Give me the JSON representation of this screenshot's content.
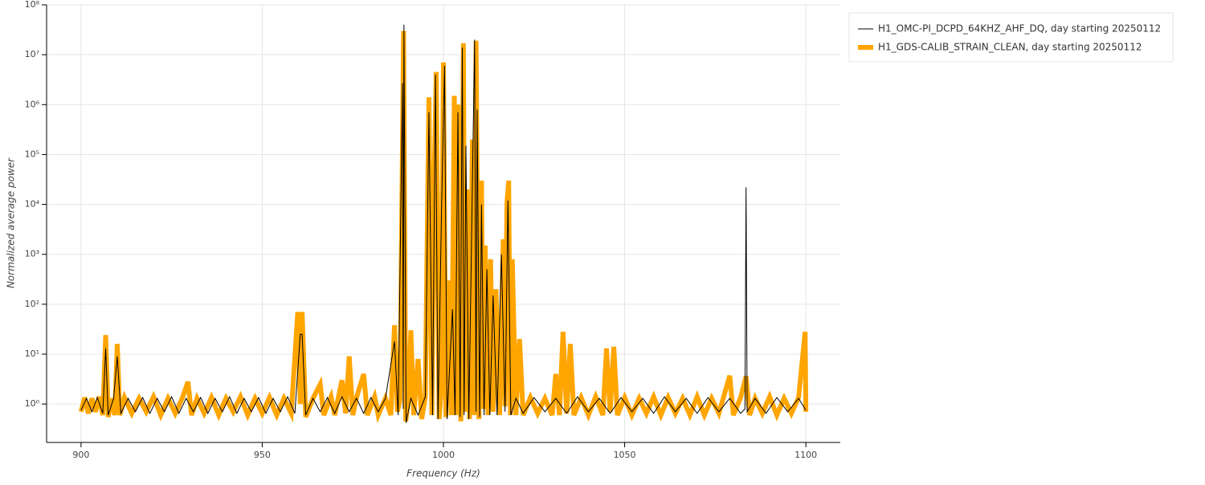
{
  "chart_data": {
    "type": "line",
    "xlabel": "Frequency (Hz)",
    "ylabel": "Normalized average power",
    "yscale": "log",
    "grid": true,
    "legend_position": "right",
    "xlim": [
      890.5,
      1109.5
    ],
    "ylim": [
      0.17,
      100000000
    ],
    "xticks": [
      900,
      950,
      1000,
      1050,
      1100
    ],
    "yticks": [
      {
        "value": 1,
        "label": "10⁰"
      },
      {
        "value": 10,
        "label": "10¹"
      },
      {
        "value": 100,
        "label": "10²"
      },
      {
        "value": 1000,
        "label": "10³"
      },
      {
        "value": 10000,
        "label": "10⁴"
      },
      {
        "value": 100000,
        "label": "10⁵"
      },
      {
        "value": 1000000,
        "label": "10⁶"
      },
      {
        "value": 10000000,
        "label": "10⁷"
      },
      {
        "value": 100000000,
        "label": "10⁸"
      }
    ],
    "series": [
      {
        "name": "H1_OMC-PI_DCPD_64KHZ_AHF_DQ, day starting 20250112",
        "color": "#000000",
        "width": 1,
        "x": [
          900,
          901.5,
          903,
          904.5,
          906,
          906.8,
          907.5,
          909,
          910,
          911,
          913,
          915,
          917,
          919,
          921,
          923,
          925,
          927,
          929,
          931,
          933,
          935,
          937,
          939,
          941,
          943,
          945,
          947,
          949,
          951,
          953,
          955,
          957,
          959,
          960.5,
          961,
          962,
          964,
          966,
          968,
          970,
          972,
          974,
          976,
          978,
          980,
          982,
          984,
          986.5,
          987.5,
          988.7,
          988.9,
          989.1,
          989.7,
          991,
          993,
          995,
          996,
          997,
          997.8,
          998.5,
          999.5,
          1000.3,
          1001,
          1002.5,
          1003.2,
          1004,
          1004.6,
          1005.2,
          1005.7,
          1006.2,
          1007,
          1008.6,
          1009,
          1009.3,
          1010,
          1010.5,
          1011.2,
          1012,
          1012.8,
          1013.7,
          1014.8,
          1016,
          1017,
          1017.8,
          1018.6,
          1020,
          1022,
          1025,
          1028,
          1031,
          1034,
          1037,
          1040,
          1043,
          1046,
          1049,
          1052,
          1055,
          1058,
          1061,
          1064,
          1067,
          1070,
          1073,
          1076,
          1079,
          1082,
          1083.2,
          1083.5,
          1083.8,
          1086,
          1089,
          1092,
          1095,
          1098,
          1100
        ],
        "values": [
          0.75,
          1.3,
          0.7,
          1.35,
          0.65,
          13,
          0.6,
          1.3,
          9,
          0.65,
          1.3,
          0.7,
          1.35,
          0.65,
          1.3,
          0.7,
          1.4,
          0.65,
          1.3,
          0.7,
          1.35,
          0.65,
          1.3,
          0.7,
          1.4,
          0.65,
          1.3,
          0.7,
          1.35,
          0.65,
          1.3,
          0.7,
          1.4,
          0.65,
          25,
          25,
          0.6,
          1.3,
          0.7,
          1.35,
          0.65,
          1.4,
          0.7,
          1.3,
          0.65,
          1.35,
          0.7,
          1.3,
          18,
          0.6,
          2700000,
          0.8,
          40000000,
          0.42,
          1.3,
          0.6,
          1.4,
          700000,
          0.6,
          4000000,
          0.5,
          10000,
          6000000,
          0.5,
          80,
          0.6,
          700000,
          0.55,
          14000000,
          0.6,
          150000,
          0.5,
          20000000,
          0.7,
          800000,
          0.55,
          10000,
          0.6,
          500,
          0.6,
          150,
          0.6,
          1000,
          0.7,
          12000,
          0.6,
          1.3,
          0.65,
          1.35,
          0.7,
          1.3,
          0.65,
          1.4,
          0.7,
          1.3,
          0.65,
          1.35,
          0.7,
          1.3,
          0.65,
          1.4,
          0.7,
          1.3,
          0.65,
          1.35,
          0.7,
          1.3,
          0.65,
          0.8,
          22000,
          0.7,
          1.3,
          0.65,
          1.35,
          0.7,
          1.3,
          0.75
        ]
      },
      {
        "name": "H1_GDS-CALIB_STRAIN_CLEAN, day starting 20250112",
        "color": "#ffa500",
        "width": 6,
        "x": [
          900,
          901,
          902,
          903,
          904,
          905,
          906,
          906.8,
          907.5,
          908.5,
          909.3,
          910,
          910.7,
          912,
          914,
          916,
          918,
          920,
          922,
          924,
          926,
          928,
          929.5,
          930.5,
          932,
          934,
          936,
          938,
          940,
          942,
          944,
          946,
          948,
          950,
          952,
          954,
          956,
          958,
          959.8,
          960.5,
          961,
          962,
          964,
          966,
          967,
          969,
          970,
          972,
          973,
          974,
          975,
          976,
          978,
          979,
          981,
          982,
          984,
          985.5,
          986.5,
          987.3,
          988,
          989,
          989.6,
          990.4,
          991,
          991.8,
          993,
          994,
          995,
          996,
          996.8,
          997.5,
          998,
          998.8,
          999.3,
          1000,
          1000.7,
          1001.5,
          1002.2,
          1003,
          1003.5,
          1004,
          1004.8,
          1005.5,
          1006,
          1006.5,
          1007.2,
          1008,
          1008.5,
          1009,
          1009.8,
          1010.5,
          1011,
          1011.5,
          1012.3,
          1013,
          1013.7,
          1014.5,
          1015.5,
          1016.5,
          1017,
          1017.5,
          1018,
          1018.5,
          1019,
          1020,
          1021,
          1022,
          1024,
          1026,
          1028,
          1030,
          1031,
          1032,
          1033,
          1034,
          1035,
          1036,
          1038,
          1040,
          1042,
          1044,
          1045,
          1046,
          1047,
          1048,
          1050,
          1052,
          1054,
          1056,
          1058,
          1060,
          1062,
          1064,
          1066,
          1068,
          1070,
          1072,
          1074,
          1076,
          1079,
          1080,
          1082,
          1083.5,
          1084.5,
          1086,
          1088,
          1090,
          1092,
          1094,
          1096,
          1098,
          1099.8,
          1100
        ],
        "values": [
          0.7,
          1.35,
          0.65,
          1.3,
          0.7,
          1.4,
          0.6,
          24,
          0.55,
          1.3,
          0.6,
          16,
          0.6,
          1.35,
          0.65,
          1.3,
          0.7,
          1.4,
          0.6,
          1.3,
          0.65,
          1.35,
          2.8,
          0.6,
          1.3,
          0.65,
          1.35,
          0.6,
          1.3,
          0.7,
          1.4,
          0.6,
          1.3,
          0.65,
          1.35,
          0.6,
          1.3,
          0.65,
          70,
          1,
          70,
          0.55,
          1.3,
          2.5,
          0.6,
          1.4,
          0.6,
          3,
          0.65,
          9,
          0.6,
          1.35,
          4,
          0.6,
          1.4,
          0.6,
          1.3,
          0.6,
          38,
          0.7,
          1.2,
          30000000,
          0.45,
          1.3,
          30,
          0.6,
          8,
          0.5,
          1.4,
          1400000,
          0.6,
          50000,
          4500000,
          0.5,
          1.5,
          7000000,
          0.55,
          300,
          0.6,
          1500000,
          0.6,
          1000000,
          0.45,
          17000000,
          0.7,
          20000,
          0.5,
          200000,
          0.6,
          19000000,
          0.5,
          30000,
          0.8,
          1500,
          0.6,
          800,
          0.7,
          200,
          0.6,
          2000,
          0.9,
          10000,
          30000,
          0.6,
          800,
          0.6,
          20,
          0.6,
          1.35,
          0.65,
          1.3,
          0.6,
          4,
          0.6,
          28,
          0.65,
          16,
          0.6,
          1.35,
          0.6,
          1.4,
          0.6,
          13,
          0.7,
          14,
          0.6,
          1.35,
          0.6,
          1.3,
          0.65,
          1.4,
          0.6,
          1.35,
          0.65,
          1.3,
          0.6,
          1.4,
          0.6,
          1.3,
          0.65,
          3.7,
          0.6,
          1.35,
          3.6,
          0.6,
          1.3,
          0.65,
          1.4,
          0.6,
          1.3,
          0.65,
          1.35,
          28,
          0.7
        ]
      }
    ]
  }
}
